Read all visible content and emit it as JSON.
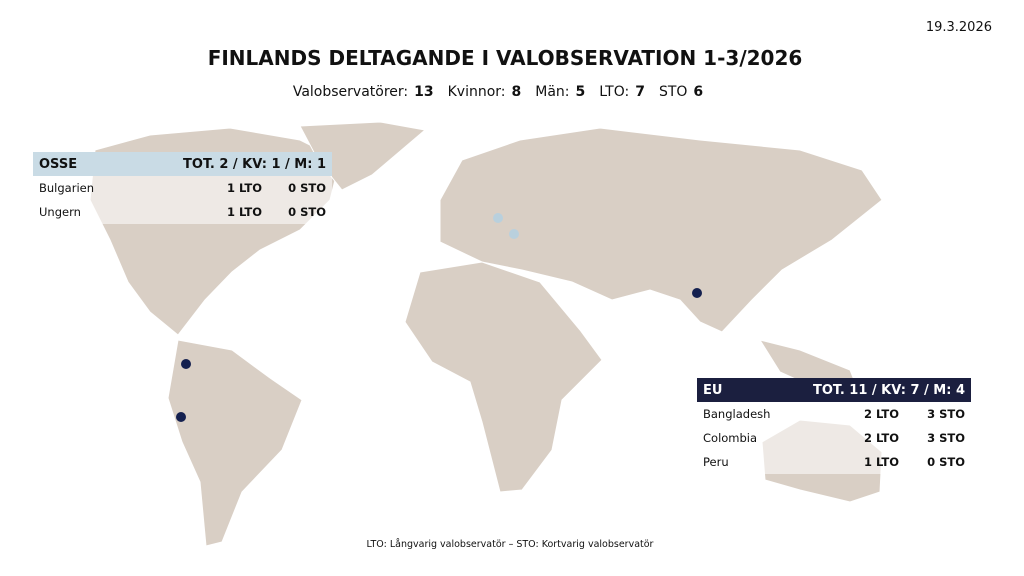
{
  "header": {
    "date": "19.3.2026",
    "title": "FINLANDS DELTAGANDE I VALOBSERVATION 1-3/2026",
    "stats": [
      {
        "label": "Valobservatörer:",
        "value": 13
      },
      {
        "label": "Kvinnor:",
        "value": 8
      },
      {
        "label": "Män:",
        "value": 5
      },
      {
        "label": "LTO:",
        "value": 7
      },
      {
        "label": "STO",
        "value": 6
      }
    ]
  },
  "panels": [
    {
      "name": "OSSE",
      "total": "TOT. 2 / KV: 1 / M: 1",
      "rows": [
        [
          "Bulgarien",
          "1 LTO",
          "0 STO"
        ],
        [
          "Ungern",
          "1 LTO",
          "0 STO"
        ]
      ]
    },
    {
      "name": "EU",
      "total": "TOT. 11 / KV: 7 / M: 4",
      "rows": [
        [
          "Bangladesh",
          "2 LTO",
          "3 STO"
        ],
        [
          "Colombia",
          "2 LTO",
          "3 STO"
        ],
        [
          "Peru",
          "1 LTO",
          "0 STO"
        ]
      ]
    }
  ],
  "footnote": "LTO: Långvarig valobservatör – STO: Kortvarig valobservatör"
}
